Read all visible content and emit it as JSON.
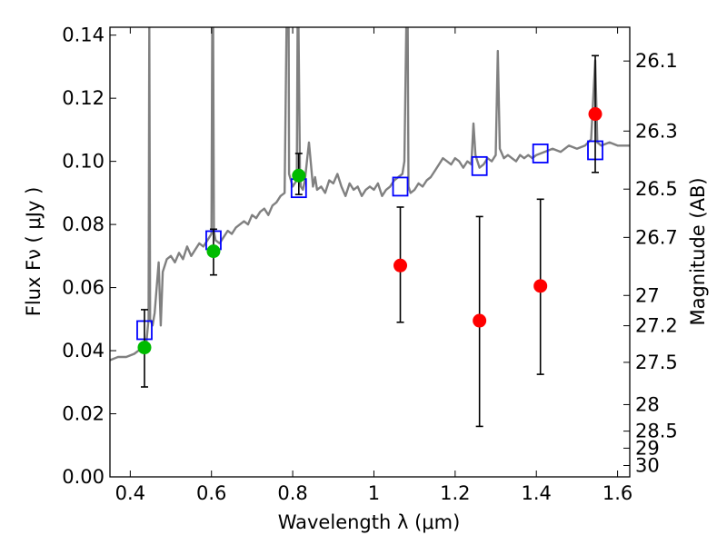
{
  "chart_data": {
    "type": "scatter",
    "title": "",
    "xlabel": "Wavelength  λ (μm)",
    "ylabel": "Flux  Fν  ( μJy )",
    "y2label": "Magnitude (AB)",
    "xlim": [
      0.35,
      1.63
    ],
    "ylim": [
      0.0,
      0.1425
    ],
    "xticks": [
      0.4,
      0.6,
      0.8,
      1.0,
      1.2,
      1.4,
      1.6
    ],
    "xtick_labels": [
      "0.4",
      "0.6",
      "0.8",
      "1",
      "1.2",
      "1.4",
      "1.6"
    ],
    "yticks": [
      0.0,
      0.02,
      0.04,
      0.06,
      0.08,
      0.1,
      0.12,
      0.14
    ],
    "ytick_labels": [
      "0.00",
      "0.02",
      "0.04",
      "0.06",
      "0.08",
      "0.10",
      "0.12",
      "0.14"
    ],
    "y2ticks": [
      {
        "label": "26.1",
        "flux": 0.1318
      },
      {
        "label": "26.3",
        "flux": 0.1096
      },
      {
        "label": "26.5",
        "flux": 0.0912
      },
      {
        "label": "26.7",
        "flux": 0.0759
      },
      {
        "label": "27",
        "flux": 0.0575
      },
      {
        "label": "27.2",
        "flux": 0.0479
      },
      {
        "label": "27.5",
        "flux": 0.0363
      },
      {
        "label": "28",
        "flux": 0.0229
      },
      {
        "label": "28.5",
        "flux": 0.0145
      },
      {
        "label": "29",
        "flux": 0.0091
      },
      {
        "label": "30",
        "flux": 0.0036
      }
    ],
    "grid": false,
    "legend": "none",
    "series": [
      {
        "kind": "line",
        "color": "#808080",
        "x": [
          0.35,
          0.37,
          0.39,
          0.41,
          0.42,
          0.43,
          0.44,
          0.445,
          0.447,
          0.449,
          0.455,
          0.46,
          0.47,
          0.475,
          0.48,
          0.49,
          0.5,
          0.51,
          0.52,
          0.53,
          0.54,
          0.55,
          0.56,
          0.57,
          0.58,
          0.59,
          0.6,
          0.602,
          0.604,
          0.606,
          0.61,
          0.62,
          0.63,
          0.64,
          0.65,
          0.66,
          0.67,
          0.68,
          0.69,
          0.7,
          0.71,
          0.72,
          0.73,
          0.74,
          0.75,
          0.76,
          0.77,
          0.78,
          0.785,
          0.789,
          0.79,
          0.791,
          0.8,
          0.81,
          0.812,
          0.814,
          0.818,
          0.82,
          0.825,
          0.83,
          0.84,
          0.85,
          0.855,
          0.86,
          0.87,
          0.88,
          0.89,
          0.9,
          0.91,
          0.92,
          0.93,
          0.94,
          0.95,
          0.96,
          0.97,
          0.98,
          0.99,
          1.0,
          1.01,
          1.02,
          1.03,
          1.04,
          1.05,
          1.06,
          1.07,
          1.075,
          1.08,
          1.083,
          1.085,
          1.09,
          1.1,
          1.11,
          1.12,
          1.13,
          1.14,
          1.15,
          1.16,
          1.17,
          1.18,
          1.19,
          1.2,
          1.21,
          1.22,
          1.23,
          1.24,
          1.245,
          1.25,
          1.255,
          1.26,
          1.27,
          1.28,
          1.29,
          1.3,
          1.305,
          1.31,
          1.32,
          1.33,
          1.34,
          1.35,
          1.36,
          1.37,
          1.38,
          1.39,
          1.4,
          1.42,
          1.44,
          1.46,
          1.48,
          1.5,
          1.52,
          1.535,
          1.54,
          1.545,
          1.55,
          1.56,
          1.58,
          1.6,
          1.63
        ],
        "y": [
          0.037,
          0.038,
          0.038,
          0.039,
          0.04,
          0.041,
          0.043,
          0.05,
          0.145,
          0.05,
          0.048,
          0.052,
          0.068,
          0.048,
          0.065,
          0.069,
          0.07,
          0.068,
          0.071,
          0.069,
          0.073,
          0.07,
          0.072,
          0.074,
          0.073,
          0.075,
          0.077,
          0.145,
          0.145,
          0.078,
          0.075,
          0.074,
          0.076,
          0.078,
          0.077,
          0.079,
          0.08,
          0.081,
          0.08,
          0.083,
          0.082,
          0.084,
          0.085,
          0.083,
          0.086,
          0.087,
          0.089,
          0.09,
          0.145,
          0.145,
          0.145,
          0.096,
          0.092,
          0.094,
          0.145,
          0.145,
          0.096,
          0.092,
          0.091,
          0.094,
          0.106,
          0.092,
          0.095,
          0.091,
          0.092,
          0.09,
          0.094,
          0.093,
          0.096,
          0.092,
          0.089,
          0.093,
          0.091,
          0.092,
          0.089,
          0.091,
          0.092,
          0.091,
          0.093,
          0.089,
          0.091,
          0.092,
          0.094,
          0.095,
          0.096,
          0.1,
          0.145,
          0.145,
          0.092,
          0.09,
          0.091,
          0.093,
          0.092,
          0.094,
          0.095,
          0.097,
          0.099,
          0.101,
          0.1,
          0.099,
          0.101,
          0.1,
          0.098,
          0.1,
          0.099,
          0.112,
          0.102,
          0.1,
          0.098,
          0.099,
          0.101,
          0.1,
          0.102,
          0.135,
          0.104,
          0.101,
          0.102,
          0.101,
          0.1,
          0.102,
          0.101,
          0.102,
          0.101,
          0.102,
          0.103,
          0.104,
          0.103,
          0.105,
          0.104,
          0.105,
          0.107,
          0.12,
          0.132,
          0.106,
          0.105,
          0.106,
          0.105,
          0.105
        ]
      },
      {
        "kind": "markers",
        "marker": "square-open",
        "color": "#0000ff",
        "x": [
          0.435,
          0.605,
          0.815,
          1.065,
          1.26,
          1.41,
          1.545
        ],
        "y": [
          0.0465,
          0.075,
          0.0915,
          0.092,
          0.0985,
          0.1025,
          0.1035
        ]
      },
      {
        "kind": "markers",
        "marker": "circle",
        "color": "#00bb00",
        "x": [
          0.435,
          0.605,
          0.815
        ],
        "y": [
          0.041,
          0.0715,
          0.0955
        ],
        "err_low": [
          0.0285,
          0.064,
          0.0895
        ],
        "err_high": [
          0.053,
          0.0785,
          0.1025
        ]
      },
      {
        "kind": "markers",
        "marker": "circle",
        "color": "#ff0000",
        "x": [
          1.065,
          1.26,
          1.41,
          1.545
        ],
        "y": [
          0.067,
          0.0495,
          0.0605,
          0.115
        ],
        "err_low": [
          0.049,
          0.016,
          0.0325,
          0.0965
        ],
        "err_high": [
          0.0855,
          0.0825,
          0.088,
          0.1335
        ]
      }
    ]
  }
}
